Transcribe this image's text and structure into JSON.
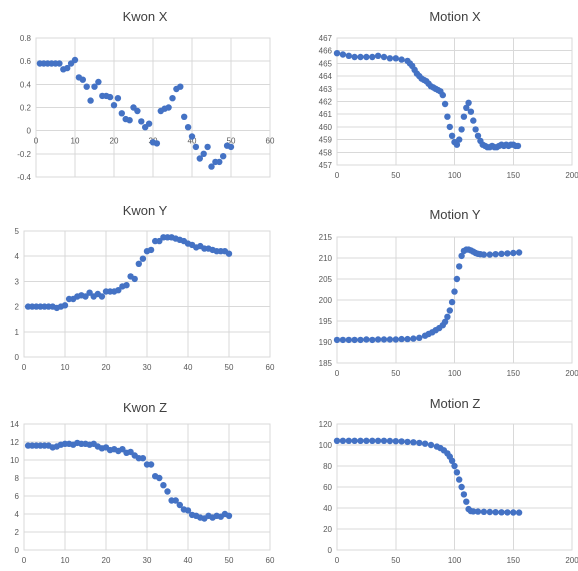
{
  "colors": {
    "marker": "#4472C4",
    "grid": "#d9d9d9",
    "text": "#404040",
    "tick": "#595959"
  },
  "chart_data": [
    {
      "id": "kwon-x",
      "type": "scatter",
      "title": "Kwon X",
      "xlim": [
        0,
        60
      ],
      "xticks": [
        0,
        10,
        20,
        30,
        40,
        50,
        60
      ],
      "ylim": [
        -0.4,
        0.8
      ],
      "yticks": [
        -0.4,
        -0.2,
        0,
        0.2,
        0.4,
        0.6,
        0.8
      ],
      "ytick_labels": [
        "-0.4",
        "-0.2",
        "0",
        "0.2",
        "0.4",
        "0.6",
        "0.8"
      ],
      "x_axis_at_zero": true,
      "x": [
        1,
        2,
        3,
        4,
        5,
        6,
        7,
        8,
        9,
        10,
        11,
        12,
        13,
        14,
        15,
        16,
        17,
        18,
        19,
        20,
        21,
        22,
        23,
        24,
        25,
        26,
        27,
        28,
        29,
        30,
        31,
        32,
        33,
        34,
        35,
        36,
        37,
        38,
        39,
        40,
        41,
        42,
        43,
        44,
        45,
        46,
        47,
        48,
        49,
        50
      ],
      "y": [
        0.58,
        0.58,
        0.58,
        0.58,
        0.58,
        0.58,
        0.53,
        0.54,
        0.58,
        0.61,
        0.46,
        0.44,
        0.38,
        0.26,
        0.38,
        0.42,
        0.3,
        0.3,
        0.29,
        0.22,
        0.28,
        0.15,
        0.1,
        0.09,
        0.2,
        0.17,
        0.08,
        0.03,
        0.06,
        -0.1,
        -0.11,
        0.17,
        0.19,
        0.2,
        0.28,
        0.36,
        0.38,
        0.12,
        0.03,
        -0.05,
        -0.14,
        -0.24,
        -0.2,
        -0.14,
        -0.31,
        -0.27,
        -0.27,
        -0.22,
        -0.13,
        -0.14
      ]
    },
    {
      "id": "motion-x",
      "type": "scatter",
      "title": "Motion X",
      "xlim": [
        0,
        200
      ],
      "xticks": [
        0,
        50,
        100,
        150,
        200
      ],
      "ylim": [
        457,
        467
      ],
      "yticks": [
        457,
        458,
        459,
        460,
        461,
        462,
        463,
        464,
        465,
        466,
        467
      ],
      "ytick_labels": [
        "457",
        "458",
        "459",
        "460",
        "461",
        "462",
        "463",
        "464",
        "465",
        "466",
        "467"
      ],
      "x_axis_at_zero": false,
      "x": [
        0,
        5,
        10,
        15,
        20,
        25,
        30,
        35,
        40,
        45,
        50,
        55,
        60,
        62,
        64,
        66,
        68,
        70,
        72,
        74,
        76,
        78,
        80,
        82,
        84,
        86,
        88,
        90,
        92,
        94,
        96,
        98,
        100,
        102,
        104,
        106,
        108,
        110,
        112,
        114,
        116,
        118,
        120,
        122,
        124,
        126,
        128,
        130,
        132,
        134,
        136,
        138,
        140,
        142,
        144,
        146,
        148,
        150,
        152,
        154
      ],
      "y": [
        465.8,
        465.7,
        465.6,
        465.5,
        465.5,
        465.5,
        465.5,
        465.6,
        465.5,
        465.4,
        465.4,
        465.3,
        465.2,
        465.0,
        464.8,
        464.5,
        464.2,
        464.0,
        463.8,
        463.7,
        463.6,
        463.4,
        463.2,
        463.1,
        463.0,
        462.9,
        462.8,
        462.5,
        461.8,
        460.8,
        460.0,
        459.3,
        458.8,
        458.6,
        459.0,
        459.8,
        460.8,
        461.5,
        461.9,
        461.2,
        460.5,
        459.8,
        459.3,
        458.9,
        458.6,
        458.5,
        458.4,
        458.4,
        458.5,
        458.4,
        458.4,
        458.5,
        458.6,
        458.5,
        458.6,
        458.5,
        458.6,
        458.6,
        458.5,
        458.5
      ]
    },
    {
      "id": "kwon-y",
      "type": "scatter",
      "title": "Kwon Y",
      "xlim": [
        0,
        60
      ],
      "xticks": [
        0,
        10,
        20,
        30,
        40,
        50,
        60
      ],
      "ylim": [
        0,
        5
      ],
      "yticks": [
        0,
        1,
        2,
        3,
        4,
        5
      ],
      "ytick_labels": [
        "0",
        "1",
        "2",
        "3",
        "4",
        "5"
      ],
      "x_axis_at_zero": false,
      "x": [
        1,
        2,
        3,
        4,
        5,
        6,
        7,
        8,
        9,
        10,
        11,
        12,
        13,
        14,
        15,
        16,
        17,
        18,
        19,
        20,
        21,
        22,
        23,
        24,
        25,
        26,
        27,
        28,
        29,
        30,
        31,
        32,
        33,
        34,
        35,
        36,
        37,
        38,
        39,
        40,
        41,
        42,
        43,
        44,
        45,
        46,
        47,
        48,
        49,
        50
      ],
      "y": [
        2.0,
        2.0,
        2.0,
        2.0,
        2.0,
        2.0,
        2.0,
        1.95,
        2.0,
        2.05,
        2.3,
        2.3,
        2.4,
        2.45,
        2.4,
        2.55,
        2.4,
        2.5,
        2.4,
        2.6,
        2.6,
        2.6,
        2.65,
        2.8,
        2.85,
        3.2,
        3.1,
        3.7,
        3.9,
        4.2,
        4.25,
        4.6,
        4.6,
        4.75,
        4.75,
        4.75,
        4.7,
        4.65,
        4.6,
        4.5,
        4.45,
        4.35,
        4.4,
        4.3,
        4.3,
        4.25,
        4.2,
        4.2,
        4.2,
        4.1
      ]
    },
    {
      "id": "motion-y",
      "type": "scatter",
      "title": "Motion Y",
      "xlim": [
        0,
        200
      ],
      "xticks": [
        0,
        50,
        100,
        150,
        200
      ],
      "ylim": [
        185,
        215
      ],
      "yticks": [
        185,
        190,
        195,
        200,
        205,
        210,
        215
      ],
      "ytick_labels": [
        "185",
        "190",
        "195",
        "200",
        "205",
        "210",
        "215"
      ],
      "x_axis_at_zero": false,
      "x": [
        0,
        5,
        10,
        15,
        20,
        25,
        30,
        35,
        40,
        45,
        50,
        55,
        60,
        65,
        70,
        75,
        78,
        81,
        84,
        87,
        90,
        92,
        94,
        96,
        98,
        100,
        102,
        104,
        106,
        108,
        110,
        112,
        114,
        116,
        118,
        120,
        122,
        125,
        130,
        135,
        140,
        145,
        150,
        155
      ],
      "y": [
        190.5,
        190.5,
        190.5,
        190.5,
        190.5,
        190.6,
        190.5,
        190.6,
        190.6,
        190.6,
        190.6,
        190.7,
        190.7,
        190.8,
        191.0,
        191.5,
        191.9,
        192.3,
        192.8,
        193.3,
        194.0,
        194.8,
        196.0,
        197.5,
        199.5,
        202.0,
        205.0,
        208.0,
        210.5,
        211.7,
        212.0,
        212.0,
        211.8,
        211.5,
        211.2,
        211.0,
        210.9,
        210.8,
        210.8,
        210.9,
        211.0,
        211.1,
        211.2,
        211.3
      ]
    },
    {
      "id": "kwon-z",
      "type": "scatter",
      "title": "Kwon Z",
      "xlim": [
        0,
        60
      ],
      "xticks": [
        0,
        10,
        20,
        30,
        40,
        50,
        60
      ],
      "ylim": [
        0,
        14
      ],
      "yticks": [
        0,
        2,
        4,
        6,
        8,
        10,
        12,
        14
      ],
      "ytick_labels": [
        "0",
        "2",
        "4",
        "6",
        "8",
        "10",
        "12",
        "14"
      ],
      "x_axis_at_zero": false,
      "x": [
        1,
        2,
        3,
        4,
        5,
        6,
        7,
        8,
        9,
        10,
        11,
        12,
        13,
        14,
        15,
        16,
        17,
        18,
        19,
        20,
        21,
        22,
        23,
        24,
        25,
        26,
        27,
        28,
        29,
        30,
        31,
        32,
        33,
        34,
        35,
        36,
        37,
        38,
        39,
        40,
        41,
        42,
        43,
        44,
        45,
        46,
        47,
        48,
        49,
        50
      ],
      "y": [
        11.6,
        11.6,
        11.6,
        11.6,
        11.6,
        11.6,
        11.4,
        11.5,
        11.7,
        11.8,
        11.8,
        11.7,
        11.9,
        11.8,
        11.8,
        11.7,
        11.8,
        11.5,
        11.3,
        11.4,
        11.1,
        11.2,
        11.0,
        11.2,
        10.8,
        10.9,
        10.5,
        10.2,
        10.2,
        9.5,
        9.5,
        8.2,
        8.0,
        7.2,
        6.5,
        5.5,
        5.5,
        5.0,
        4.5,
        4.4,
        3.9,
        3.8,
        3.6,
        3.5,
        3.8,
        3.6,
        3.8,
        3.7,
        4.0,
        3.8
      ]
    },
    {
      "id": "motion-z",
      "type": "scatter",
      "title": "Motion Z",
      "xlim": [
        0,
        200
      ],
      "xticks": [
        0,
        50,
        100,
        150,
        200
      ],
      "ylim": [
        0,
        120
      ],
      "yticks": [
        0,
        20,
        40,
        60,
        80,
        100,
        120
      ],
      "ytick_labels": [
        "0",
        "20",
        "40",
        "60",
        "80",
        "100",
        "120"
      ],
      "x_axis_at_zero": false,
      "x": [
        0,
        5,
        10,
        15,
        20,
        25,
        30,
        35,
        40,
        45,
        50,
        55,
        60,
        65,
        70,
        75,
        80,
        85,
        88,
        91,
        94,
        96,
        98,
        100,
        102,
        104,
        106,
        108,
        110,
        112,
        114,
        116,
        120,
        125,
        130,
        135,
        140,
        145,
        150,
        155
      ],
      "y": [
        104,
        104,
        104,
        104,
        104,
        104,
        104,
        104,
        104,
        103.8,
        103.6,
        103.4,
        103,
        102.6,
        102,
        101.2,
        100,
        98.5,
        97,
        95,
        92,
        89,
        85,
        80,
        74,
        67,
        60,
        53,
        46,
        39,
        37,
        36.8,
        36.6,
        36.4,
        36.2,
        36,
        35.9,
        35.8,
        35.7,
        35.6
      ]
    }
  ]
}
